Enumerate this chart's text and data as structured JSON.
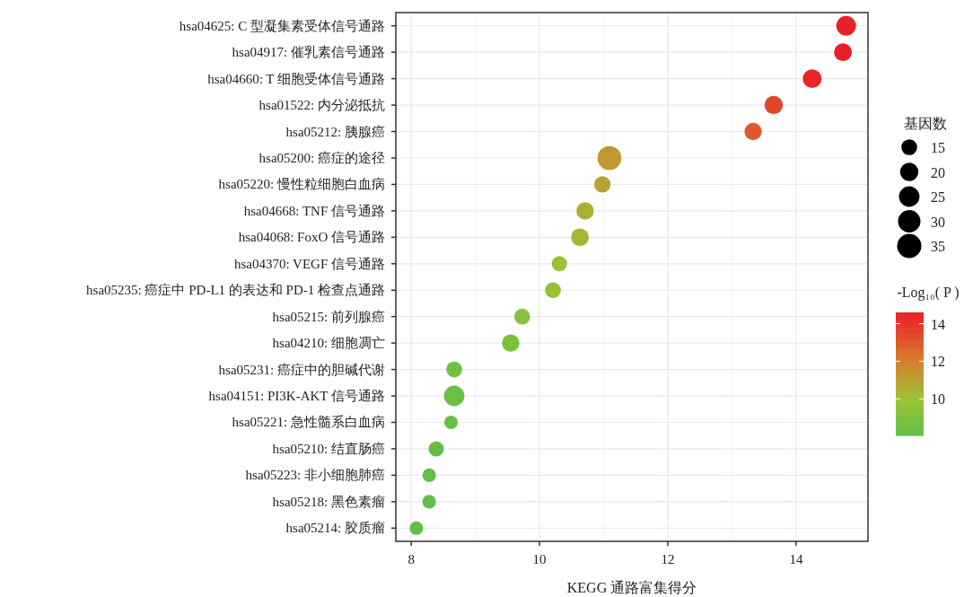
{
  "chart_data": {
    "type": "bubble",
    "xlabel": "KEGG 通路富集得分",
    "legend_title": "基因数",
    "clabel": "-Log₁₀( P )",
    "categories": [
      "hsa04625: C 型凝集素受体信号通路",
      "hsa04917: 催乳素信号通路",
      "hsa04660: T 细胞受体信号通路",
      "hsa01522: 内分泌抵抗",
      "hsa05212: 胰腺癌",
      "hsa05200: 癌症的途径",
      "hsa05220: 慢性粒细胞白血病",
      "hsa04668: TNF 信号通路",
      "hsa04068: FoxO 信号通路",
      "hsa04370: VEGF 信号通路",
      "hsa05235: 癌症中 PD-L1 的表达和 PD-1 检查点通路",
      "hsa05215: 前列腺癌",
      "hsa04210: 细胞凋亡",
      "hsa05231: 癌症中的胆碱代谢",
      "hsa04151: PI3K-AKT 信号通路",
      "hsa05221: 急性髓系白血病",
      "hsa05210: 结直肠癌",
      "hsa05223: 非小细胞肺癌",
      "hsa05218: 黑色素瘤",
      "hsa05214: 胶质瘤"
    ],
    "values": [
      14.78,
      14.73,
      14.25,
      13.65,
      13.33,
      11.09,
      10.98,
      10.71,
      10.63,
      10.31,
      10.21,
      9.73,
      9.55,
      8.67,
      8.67,
      8.62,
      8.39,
      8.28,
      8.28,
      8.08
    ],
    "sizes": [
      23,
      19,
      21,
      20,
      18,
      34,
      16,
      18,
      19,
      14,
      15,
      15,
      18,
      15,
      25,
      11,
      14,
      11,
      11,
      11
    ],
    "cvalues": [
      14.5,
      14.6,
      14.4,
      13.5,
      13.0,
      11.2,
      11.0,
      10.6,
      10.4,
      9.9,
      9.8,
      9.3,
      9.0,
      8.6,
      8.4,
      8.3,
      8.2,
      8.1,
      8.1,
      8.05
    ],
    "size_legend": [
      15,
      20,
      25,
      30,
      35
    ],
    "orientation": "horizontal",
    "xlim": [
      7.76,
      15.12
    ],
    "xticks": [
      8,
      10,
      12,
      14
    ],
    "clim": [
      8.05,
      14.6
    ],
    "cticks": [
      10,
      12,
      14
    ],
    "grid": true
  }
}
